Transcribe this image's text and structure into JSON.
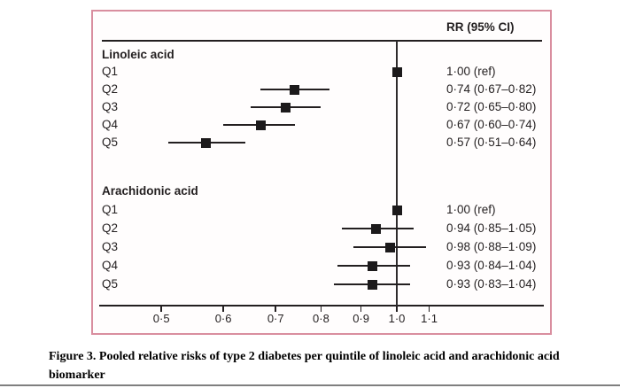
{
  "colors": {
    "panel_border": "#d98e9f",
    "ink": "#231f20",
    "bottom_rule": "#7f7f7f"
  },
  "caption": {
    "line1": "Figure 3. Pooled relative risks of type 2 diabetes per quintile of linoleic acid and arachidonic acid",
    "line2": "biomarker"
  },
  "chart_data": {
    "type": "forest",
    "title": "",
    "column_header": "RR (95% CI)",
    "x_axis": {
      "scale": "log",
      "ticks": [
        0.5,
        0.6,
        0.7,
        0.8,
        0.9,
        1.0,
        1.1
      ],
      "tick_labels": [
        "0·5",
        "0·6",
        "0·7",
        "0·8",
        "0·9",
        "1·0",
        "1·1"
      ],
      "x_range": [
        0.42,
        1.54
      ],
      "reference_line": 1.0,
      "grid": false
    },
    "groups": [
      {
        "label": "Linoleic acid",
        "rows": [
          {
            "label": "Q1",
            "rr": 1.0,
            "ci_low": null,
            "ci_high": null,
            "rr_text": "1·00 (ref)"
          },
          {
            "label": "Q2",
            "rr": 0.74,
            "ci_low": 0.67,
            "ci_high": 0.82,
            "rr_text": "0·74 (0·67–0·82)"
          },
          {
            "label": "Q3",
            "rr": 0.72,
            "ci_low": 0.65,
            "ci_high": 0.8,
            "rr_text": "0·72 (0·65–0·80)"
          },
          {
            "label": "Q4",
            "rr": 0.67,
            "ci_low": 0.6,
            "ci_high": 0.74,
            "rr_text": "0·67 (0·60–0·74)"
          },
          {
            "label": "Q5",
            "rr": 0.57,
            "ci_low": 0.51,
            "ci_high": 0.64,
            "rr_text": "0·57 (0·51–0·64)"
          }
        ]
      },
      {
        "label": "Arachidonic acid",
        "rows": [
          {
            "label": "Q1",
            "rr": 1.0,
            "ci_low": null,
            "ci_high": null,
            "rr_text": "1·00 (ref)"
          },
          {
            "label": "Q2",
            "rr": 0.94,
            "ci_low": 0.85,
            "ci_high": 1.05,
            "rr_text": "0·94 (0·85–1·05)"
          },
          {
            "label": "Q3",
            "rr": 0.98,
            "ci_low": 0.88,
            "ci_high": 1.09,
            "rr_text": "0·98 (0·88–1·09)"
          },
          {
            "label": "Q4",
            "rr": 0.93,
            "ci_low": 0.84,
            "ci_high": 1.04,
            "rr_text": "0·93 (0·84–1·04)"
          },
          {
            "label": "Q5",
            "rr": 0.93,
            "ci_low": 0.83,
            "ci_high": 1.04,
            "rr_text": "0·93 (0·83–1·04)"
          }
        ]
      }
    ]
  }
}
